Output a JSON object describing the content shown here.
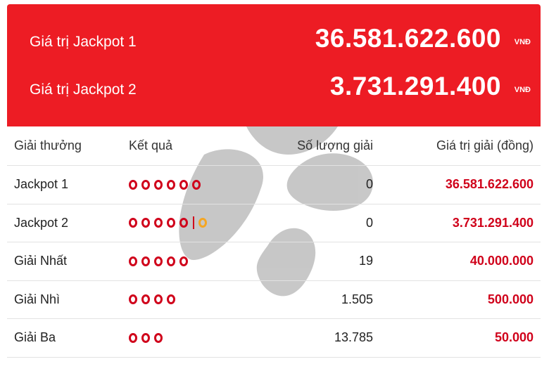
{
  "colors": {
    "brand_red": "#ed1c24",
    "prize_red": "#d0021b",
    "gold": "#f5a623"
  },
  "jackpots": [
    {
      "label": "Giá trị Jackpot 1",
      "value": "36.581.622.600",
      "unit": "VNĐ"
    },
    {
      "label": "Giá trị Jackpot 2",
      "value": "3.731.291.400",
      "unit": "VNĐ"
    }
  ],
  "table": {
    "headers": [
      "Giải thưởng",
      "Kết quả",
      "Số lượng giải",
      "Giá trị giải (đồng)"
    ],
    "rows": [
      {
        "prize": "Jackpot 1",
        "balls": 6,
        "bonus": false,
        "count": "0",
        "value": "36.581.622.600"
      },
      {
        "prize": "Jackpot 2",
        "balls": 5,
        "bonus": true,
        "count": "0",
        "value": "3.731.291.400"
      },
      {
        "prize": "Giải Nhất",
        "balls": 5,
        "bonus": false,
        "count": "19",
        "value": "40.000.000"
      },
      {
        "prize": "Giải Nhì",
        "balls": 4,
        "bonus": false,
        "count": "1.505",
        "value": "500.000"
      },
      {
        "prize": "Giải Ba",
        "balls": 3,
        "bonus": false,
        "count": "13.785",
        "value": "50.000"
      }
    ]
  }
}
